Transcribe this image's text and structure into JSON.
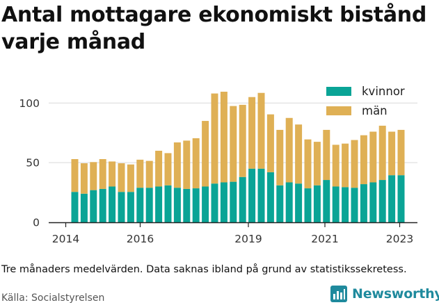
{
  "title": "Antal mottagare ekonomiskt bistånd varje månad",
  "note": "Tre månaders medelvärden. Data saknas ibland på grund av statistikssekretess.",
  "source": "Källa: Socialstyrelsen",
  "brand": "Newsworthy",
  "colors": {
    "kvinnor": "#0aa496",
    "man": "#dfb055",
    "brand": "#1f8a9d"
  },
  "chart_data": {
    "type": "bar",
    "stacked": true,
    "x_ticks": [
      "2014",
      "2016",
      "2019",
      "2021",
      "2023"
    ],
    "y_ticks": [
      "0",
      "50",
      "100"
    ],
    "ylim": [
      0,
      120
    ],
    "legend": [
      "kvinnor",
      "män"
    ],
    "legend_position": "top-right",
    "grid": "horizontal",
    "series": [
      {
        "name": "kvinnor",
        "values": [
          25.5,
          24,
          27,
          28,
          30,
          25.5,
          25.5,
          29,
          29,
          30,
          31,
          29,
          28,
          28.5,
          30,
          32.5,
          33.5,
          34,
          38,
          45,
          45,
          42,
          31,
          33.5,
          32.5,
          28.5,
          31,
          35.5,
          30,
          29.5,
          29,
          32,
          33.5,
          35.5,
          39.5,
          39.5
        ]
      },
      {
        "name": "män",
        "values": [
          27.5,
          25.5,
          23.5,
          25,
          21,
          24,
          23,
          23.5,
          22.5,
          30,
          27,
          38,
          40.5,
          42,
          55,
          75.5,
          76,
          63.5,
          60.5,
          60,
          63.5,
          48.5,
          46.5,
          54,
          49.5,
          41,
          36.5,
          42,
          35,
          36.5,
          40,
          41,
          42.5,
          45.5,
          36.5,
          38
        ]
      }
    ]
  }
}
